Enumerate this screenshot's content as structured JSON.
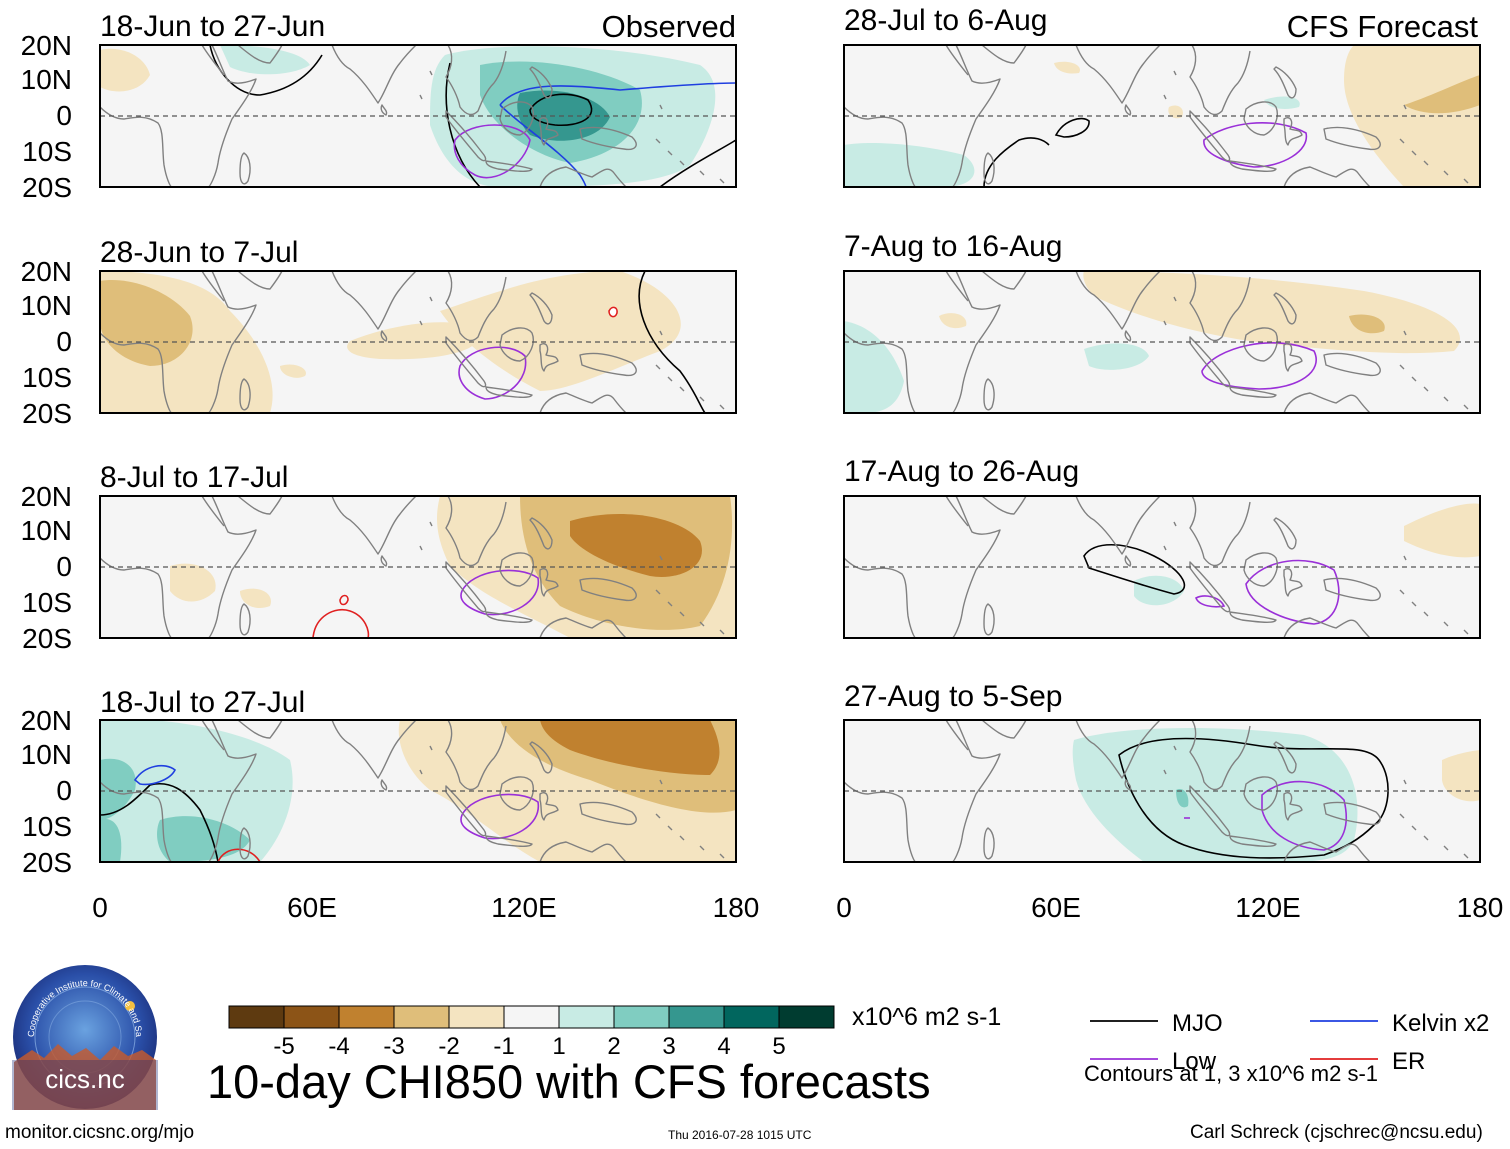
{
  "panels": [
    {
      "id": "obs-1",
      "date_label": "18-Jun to 27-Jun",
      "tag": "Observed"
    },
    {
      "id": "obs-2",
      "date_label": "28-Jun to 7-Jul",
      "tag": ""
    },
    {
      "id": "obs-3",
      "date_label": "8-Jul to 17-Jul",
      "tag": ""
    },
    {
      "id": "obs-4",
      "date_label": "18-Jul to 27-Jul",
      "tag": ""
    },
    {
      "id": "fc-1",
      "date_label": "28-Jul to 6-Aug",
      "tag": "CFS Forecast"
    },
    {
      "id": "fc-2",
      "date_label": "7-Aug to 16-Aug",
      "tag": ""
    },
    {
      "id": "fc-3",
      "date_label": "17-Aug to 26-Aug",
      "tag": ""
    },
    {
      "id": "fc-4",
      "date_label": "27-Aug to 5-Sep",
      "tag": ""
    }
  ],
  "lat_labels": [
    "20N",
    "10N",
    "0",
    "10S",
    "20S"
  ],
  "lon_labels": [
    "0",
    "60E",
    "120E",
    "180"
  ],
  "colorbar": {
    "colors": [
      "#5e3a10",
      "#8c5417",
      "#c0812f",
      "#dfbe7a",
      "#f4e4c1",
      "#f5f5f5",
      "#c8ebe4",
      "#80cdc1",
      "#35978f",
      "#01665e",
      "#003c30"
    ],
    "labels": [
      "-5",
      "-4",
      "-3",
      "-2",
      "-1",
      "1",
      "2",
      "3",
      "4",
      "5"
    ],
    "units": "x10^6 m2 s-1"
  },
  "legend": {
    "items": [
      {
        "label": "MJO",
        "color": "#000000"
      },
      {
        "label": "Kelvin x2",
        "color": "#1f3fe0"
      },
      {
        "label": "Low",
        "color": "#9a30d8"
      },
      {
        "label": "ER",
        "color": "#e02020"
      }
    ],
    "note": "Contours at 1, 3 x10^6 m2 s-1"
  },
  "title": "10-day CHI850 with CFS forecasts",
  "footer": {
    "url": "monitor.cicsnc.org/mjo",
    "timestamp": "Thu 2016-07-28 1015 UTC",
    "author": "Carl Schreck (cjschrec@ncsu.edu)"
  },
  "logo": {
    "text": "cics.nc",
    "ring_text": "Cooperative Institute for Climate and Satellites"
  },
  "colors": {
    "land_outline": "#808080",
    "equator": "#555555",
    "panel_bg": "#f5f5f5"
  }
}
